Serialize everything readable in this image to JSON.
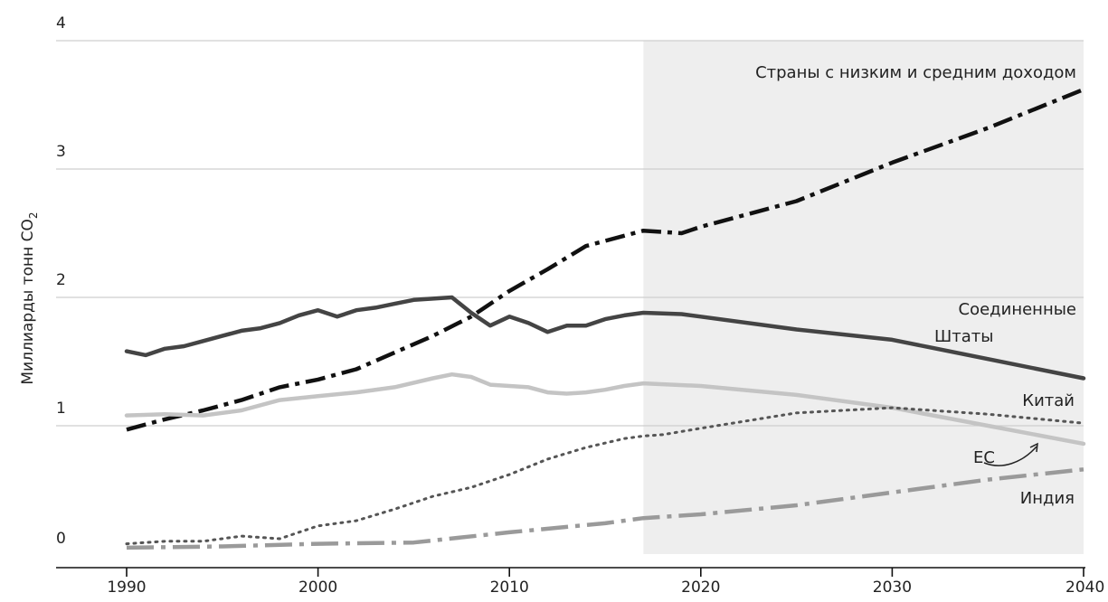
{
  "chart_data": {
    "type": "line",
    "ylabel_main": "Миллиарды тонн CO",
    "ylabel_sub": "2",
    "ylim": [
      0,
      4
    ],
    "xlim": [
      1990,
      2040
    ],
    "yticks": [
      "0",
      "1",
      "2",
      "3",
      "4"
    ],
    "xticks": [
      "1990",
      "2000",
      "2010",
      "2020",
      "2030",
      "2040"
    ],
    "grid": true,
    "shaded_region": {
      "from": 2017,
      "to": 2040,
      "color": "#eeeeee"
    },
    "series": [
      {
        "name": "Страны с низким и средним доходом",
        "label_lines": [
          "Страны с низким и средним доходом"
        ],
        "style": "dash-dot",
        "color": "#111111",
        "points": [
          [
            1990,
            0.97
          ],
          [
            1992,
            1.05
          ],
          [
            1994,
            1.12
          ],
          [
            1996,
            1.2
          ],
          [
            1998,
            1.3
          ],
          [
            2000,
            1.36
          ],
          [
            2002,
            1.44
          ],
          [
            2004,
            1.57
          ],
          [
            2006,
            1.7
          ],
          [
            2008,
            1.85
          ],
          [
            2010,
            2.05
          ],
          [
            2012,
            2.22
          ],
          [
            2014,
            2.4
          ],
          [
            2016,
            2.48
          ],
          [
            2017,
            2.52
          ],
          [
            2019,
            2.5
          ],
          [
            2020,
            2.55
          ],
          [
            2025,
            2.75
          ],
          [
            2030,
            3.05
          ],
          [
            2035,
            3.32
          ],
          [
            2040,
            3.62
          ]
        ]
      },
      {
        "name": "Соединенные Штаты",
        "label_lines": [
          "Соединенные",
          "Штаты"
        ],
        "style": "solid-dark",
        "color": "#444444",
        "points": [
          [
            1990,
            1.58
          ],
          [
            1991,
            1.55
          ],
          [
            1992,
            1.6
          ],
          [
            1993,
            1.62
          ],
          [
            1994,
            1.66
          ],
          [
            1995,
            1.7
          ],
          [
            1996,
            1.74
          ],
          [
            1997,
            1.76
          ],
          [
            1998,
            1.8
          ],
          [
            1999,
            1.86
          ],
          [
            2000,
            1.9
          ],
          [
            2001,
            1.85
          ],
          [
            2002,
            1.9
          ],
          [
            2003,
            1.92
          ],
          [
            2004,
            1.95
          ],
          [
            2005,
            1.98
          ],
          [
            2006,
            1.99
          ],
          [
            2007,
            2.0
          ],
          [
            2008,
            1.88
          ],
          [
            2009,
            1.78
          ],
          [
            2010,
            1.85
          ],
          [
            2011,
            1.8
          ],
          [
            2012,
            1.73
          ],
          [
            2013,
            1.78
          ],
          [
            2014,
            1.78
          ],
          [
            2015,
            1.83
          ],
          [
            2016,
            1.86
          ],
          [
            2017,
            1.88
          ],
          [
            2019,
            1.87
          ],
          [
            2020,
            1.85
          ],
          [
            2025,
            1.75
          ],
          [
            2030,
            1.67
          ],
          [
            2035,
            1.52
          ],
          [
            2040,
            1.37
          ]
        ]
      },
      {
        "name": "ЕС",
        "label_lines": [
          "ЕС"
        ],
        "style": "solid-light",
        "color": "#c4c4c4",
        "points": [
          [
            1990,
            1.08
          ],
          [
            1992,
            1.09
          ],
          [
            1994,
            1.08
          ],
          [
            1996,
            1.12
          ],
          [
            1998,
            1.2
          ],
          [
            2000,
            1.23
          ],
          [
            2002,
            1.26
          ],
          [
            2004,
            1.3
          ],
          [
            2006,
            1.37
          ],
          [
            2007,
            1.4
          ],
          [
            2008,
            1.38
          ],
          [
            2009,
            1.32
          ],
          [
            2010,
            1.31
          ],
          [
            2011,
            1.3
          ],
          [
            2012,
            1.26
          ],
          [
            2013,
            1.25
          ],
          [
            2014,
            1.26
          ],
          [
            2015,
            1.28
          ],
          [
            2016,
            1.31
          ],
          [
            2017,
            1.33
          ],
          [
            2020,
            1.31
          ],
          [
            2025,
            1.24
          ],
          [
            2030,
            1.14
          ],
          [
            2035,
            1.0
          ],
          [
            2040,
            0.86
          ]
        ]
      },
      {
        "name": "Китай",
        "label_lines": [
          "Китай"
        ],
        "style": "dotted",
        "color": "#555555",
        "points": [
          [
            1990,
            0.08
          ],
          [
            1992,
            0.1
          ],
          [
            1994,
            0.1
          ],
          [
            1996,
            0.14
          ],
          [
            1998,
            0.12
          ],
          [
            2000,
            0.22
          ],
          [
            2002,
            0.26
          ],
          [
            2004,
            0.35
          ],
          [
            2006,
            0.45
          ],
          [
            2008,
            0.52
          ],
          [
            2010,
            0.62
          ],
          [
            2012,
            0.74
          ],
          [
            2014,
            0.83
          ],
          [
            2016,
            0.9
          ],
          [
            2017,
            0.92
          ],
          [
            2018,
            0.93
          ],
          [
            2020,
            0.98
          ],
          [
            2025,
            1.1
          ],
          [
            2030,
            1.14
          ],
          [
            2035,
            1.09
          ],
          [
            2040,
            1.02
          ]
        ]
      },
      {
        "name": "Индия",
        "label_lines": [
          "Индия"
        ],
        "style": "long-dash-dot",
        "color": "#9a9a9a",
        "points": [
          [
            1990,
            0.05
          ],
          [
            1995,
            0.06
          ],
          [
            2000,
            0.08
          ],
          [
            2005,
            0.09
          ],
          [
            2010,
            0.17
          ],
          [
            2015,
            0.24
          ],
          [
            2017,
            0.28
          ],
          [
            2020,
            0.31
          ],
          [
            2025,
            0.38
          ],
          [
            2030,
            0.48
          ],
          [
            2035,
            0.58
          ],
          [
            2040,
            0.66
          ]
        ]
      }
    ]
  }
}
